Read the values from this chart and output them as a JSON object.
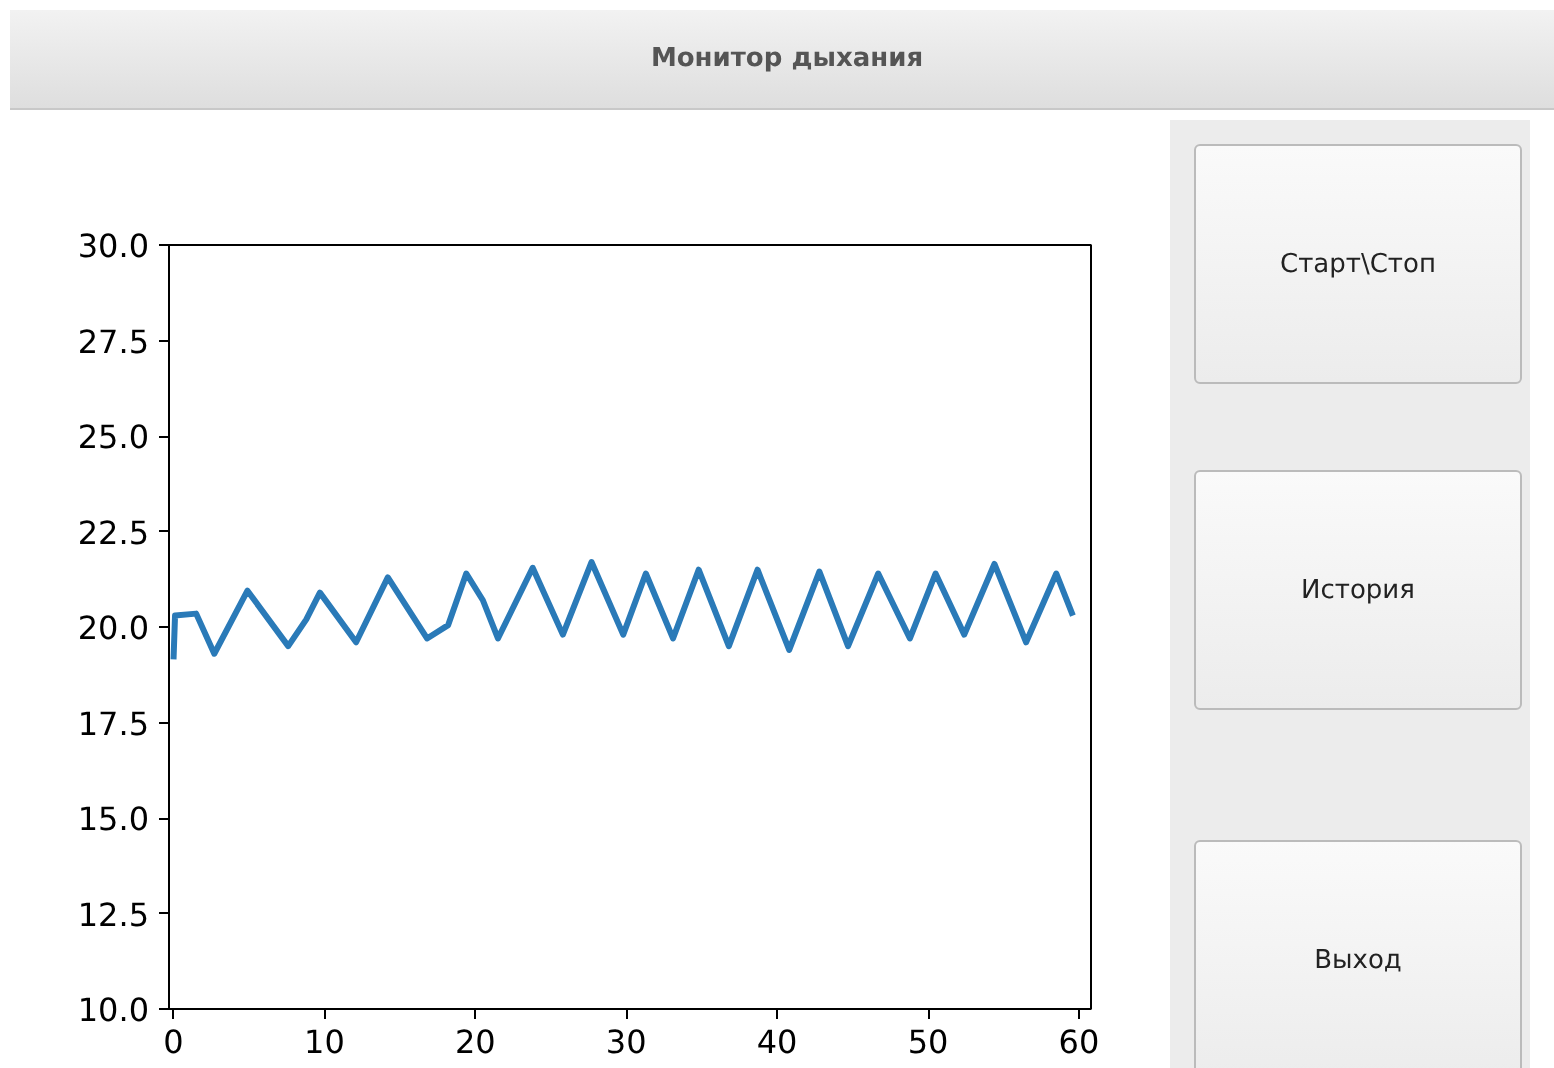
{
  "chart_data": [
    {
      "type": "line",
      "title": "Монитор дыхания",
      "x": [
        0,
        0.1,
        1.5,
        2.7,
        4.9,
        7.6,
        8.8,
        9.7,
        12.1,
        14.2,
        16.8,
        18.2,
        19.4,
        20.5,
        21.5,
        23.8,
        25.8,
        27.7,
        29.8,
        31.3,
        33.1,
        34.8,
        36.8,
        38.7,
        40.8,
        42.8,
        44.7,
        46.7,
        48.8,
        50.5,
        52.4,
        54.4,
        56.5,
        58.5,
        59.6
      ],
      "series": [
        {
          "color": "#2a7ab8",
          "values": [
            19.15,
            20.3,
            20.35,
            19.3,
            20.95,
            19.5,
            20.2,
            20.9,
            19.6,
            21.3,
            19.7,
            20.05,
            21.4,
            20.7,
            19.7,
            21.55,
            19.8,
            21.7,
            19.8,
            21.4,
            19.7,
            21.5,
            19.5,
            21.5,
            19.4,
            21.45,
            19.5,
            21.4,
            19.7,
            21.4,
            19.8,
            21.65,
            19.6,
            21.4,
            20.3
          ]
        }
      ],
      "xlim": [
        -0.3,
        60.8
      ],
      "ylim": [
        10,
        30
      ],
      "xticks": [
        0,
        10,
        20,
        30,
        40,
        50,
        60
      ],
      "yticks": [
        {
          "value": 10,
          "label": "10.0"
        },
        {
          "value": 12.5,
          "label": "12.5"
        },
        {
          "value": 15,
          "label": "15.0"
        },
        {
          "value": 17.5,
          "label": "17.5"
        },
        {
          "value": 20,
          "label": "20.0"
        },
        {
          "value": 22.5,
          "label": "22.5"
        },
        {
          "value": 25,
          "label": "25.0"
        },
        {
          "value": 27.5,
          "label": "27.5"
        },
        {
          "value": 30,
          "label": "30.0"
        }
      ],
      "grid": false,
      "line_style": "solid"
    },
    {
      "type": "other",
      "annotations": [
        "Старт\\Стоп",
        "История",
        "Выход"
      ]
    }
  ]
}
